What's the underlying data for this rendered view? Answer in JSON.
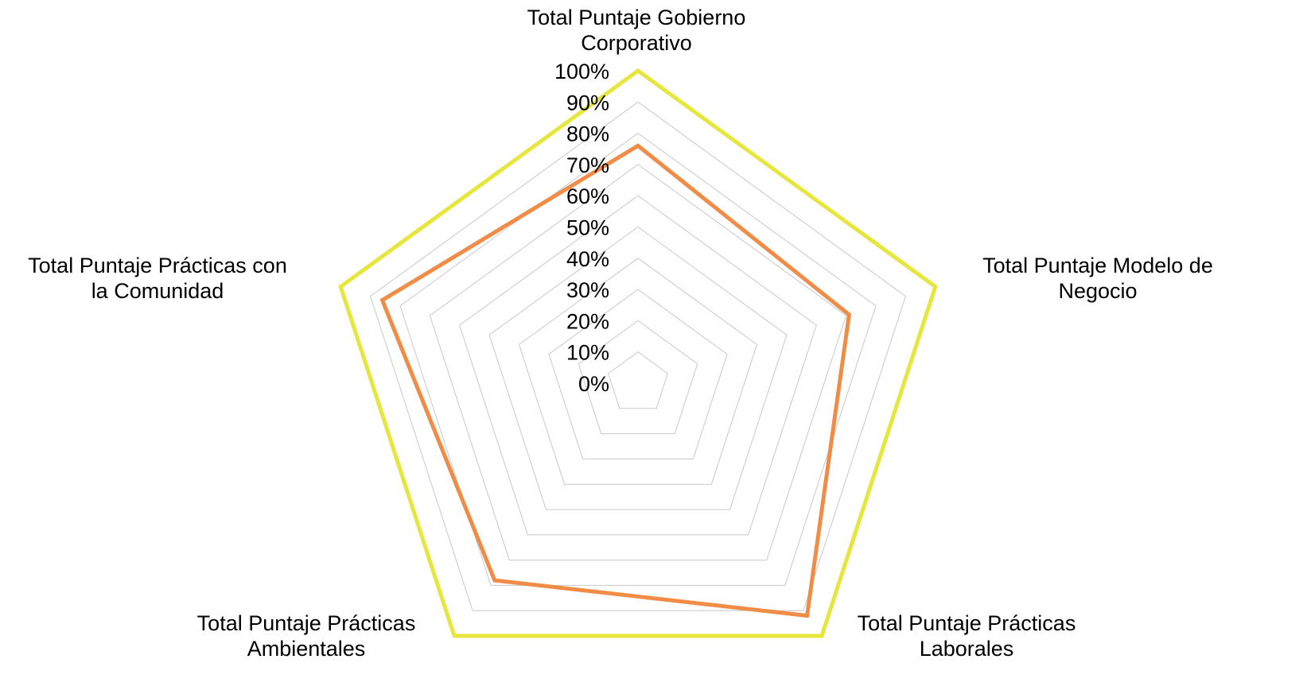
{
  "chart_data": {
    "type": "radar",
    "categories": [
      [
        "Total Puntaje Gobierno",
        "Corporativo"
      ],
      [
        "Total Puntaje Modelo de",
        "Negocio"
      ],
      [
        "Total Puntaje Prácticas",
        "Laborales"
      ],
      [
        "Total Puntaje Prácticas",
        "Ambientales"
      ],
      [
        "Total Puntaje Prácticas con",
        "la Comunidad"
      ]
    ],
    "tick_labels": [
      "0%",
      "10%",
      "20%",
      "30%",
      "40%",
      "50%",
      "60%",
      "70%",
      "80%",
      "90%",
      "100%"
    ],
    "rlim": [
      0,
      1
    ],
    "grid": true,
    "legend": "none",
    "series": [
      {
        "values": [
          1.0,
          1.0,
          1.0,
          1.0,
          1.0
        ],
        "color": "#e6e63c"
      },
      {
        "values": [
          0.76,
          0.71,
          0.92,
          0.78,
          0.86
        ],
        "color": "#f08c46"
      }
    ]
  }
}
